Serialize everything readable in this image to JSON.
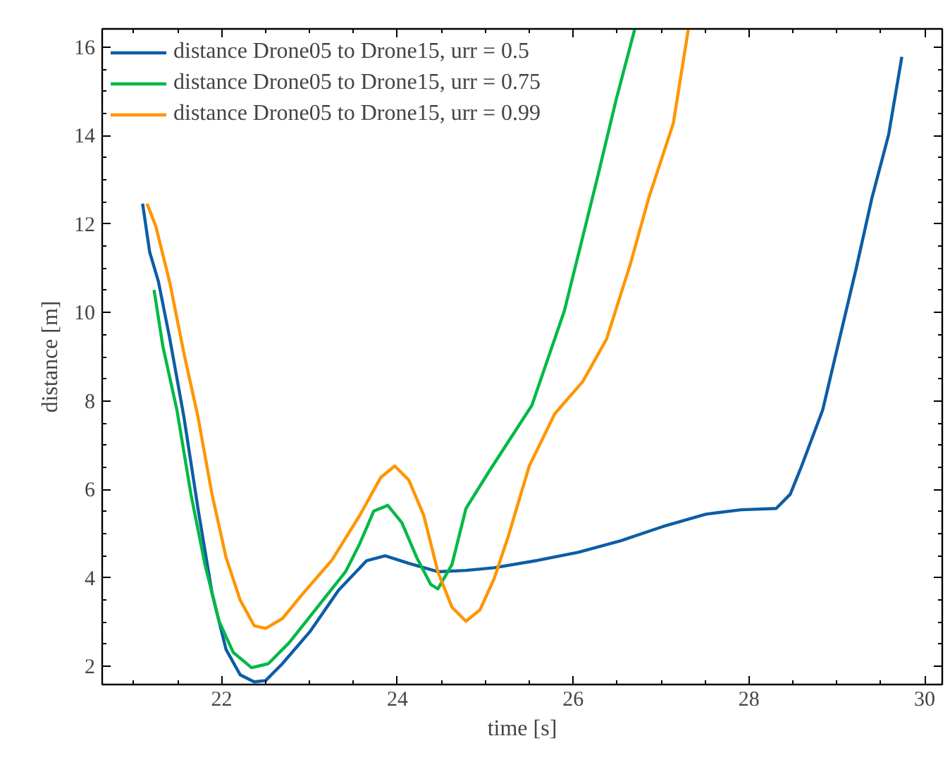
{
  "chart_data": {
    "type": "line",
    "xlabel": "time [s]",
    "ylabel": "distance [m]",
    "xlim": [
      20.64,
      30.2
    ],
    "ylim": [
      1.59,
      16.41
    ],
    "xticks": [
      22,
      24,
      26,
      28,
      30
    ],
    "yticks": [
      2,
      4,
      6,
      8,
      10,
      12,
      14,
      16
    ],
    "grid": false,
    "legend": "top left",
    "line_style": "solid",
    "marker": "none",
    "series": [
      {
        "name": "distance Drone05 to Drone15, urr = 0.5",
        "color": "#0c5da5",
        "x": [
          21.1,
          21.18,
          21.28,
          21.41,
          21.57,
          21.73,
          21.89,
          22.05,
          22.21,
          22.37,
          22.5,
          22.69,
          23.01,
          23.33,
          23.65,
          23.86,
          24.13,
          24.46,
          24.78,
          25.1,
          25.58,
          26.06,
          26.54,
          27.02,
          27.51,
          27.91,
          28.31,
          28.47,
          28.6,
          28.84,
          29.03,
          29.22,
          29.4,
          29.59,
          29.74
        ],
        "values": [
          12.46,
          11.37,
          10.7,
          9.4,
          7.64,
          5.57,
          3.66,
          2.38,
          1.81,
          1.65,
          1.68,
          2.06,
          2.8,
          3.72,
          4.39,
          4.5,
          4.33,
          4.14,
          4.17,
          4.23,
          4.39,
          4.58,
          4.84,
          5.16,
          5.44,
          5.54,
          5.57,
          5.89,
          6.53,
          7.8,
          9.4,
          10.99,
          12.59,
          14.02,
          15.78
        ]
      },
      {
        "name": "distance Drone05 to Drone15, urr = 0.75",
        "color": "#00b945",
        "x": [
          21.23,
          21.33,
          21.49,
          21.65,
          21.81,
          21.97,
          22.13,
          22.34,
          22.53,
          22.77,
          23.09,
          23.41,
          23.57,
          23.73,
          23.89,
          24.05,
          24.22,
          24.38,
          24.46,
          24.62,
          24.78,
          25.05,
          25.53,
          25.9,
          26.27,
          26.49,
          26.7
        ],
        "values": [
          10.51,
          9.24,
          7.8,
          5.89,
          4.3,
          3.02,
          2.32,
          1.97,
          2.06,
          2.54,
          3.34,
          4.14,
          4.77,
          5.51,
          5.64,
          5.25,
          4.46,
          3.85,
          3.75,
          4.3,
          5.57,
          6.43,
          7.9,
          10.04,
          13.0,
          14.82,
          16.4
        ]
      },
      {
        "name": "distance Drone05 to Drone15, urr = 0.99",
        "color": "#ff9500",
        "x": [
          21.15,
          21.25,
          21.41,
          21.57,
          21.73,
          21.89,
          22.05,
          22.21,
          22.37,
          22.5,
          22.69,
          22.93,
          23.25,
          23.57,
          23.81,
          23.97,
          24.13,
          24.3,
          24.46,
          24.62,
          24.78,
          24.94,
          25.1,
          25.26,
          25.5,
          25.79,
          26.11,
          26.38,
          26.65,
          26.86,
          27.14,
          27.31
        ],
        "values": [
          12.46,
          11.95,
          10.67,
          9.08,
          7.64,
          5.89,
          4.46,
          3.5,
          2.92,
          2.86,
          3.08,
          3.66,
          4.39,
          5.41,
          6.27,
          6.53,
          6.21,
          5.41,
          4.14,
          3.34,
          3.02,
          3.28,
          3.98,
          4.93,
          6.53,
          7.71,
          8.44,
          9.4,
          11.09,
          12.59,
          14.28,
          16.4
        ]
      }
    ]
  }
}
